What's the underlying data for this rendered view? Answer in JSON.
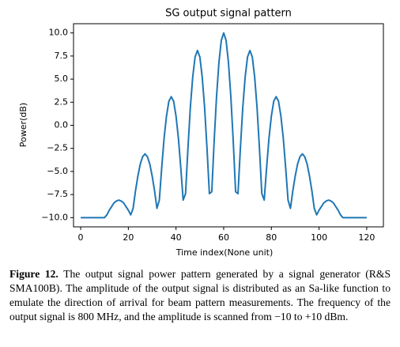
{
  "chart_data": {
    "type": "line",
    "title": "SG output signal pattern",
    "xlabel": "Time index(None unit)",
    "ylabel": "Power(dB)",
    "x": [
      0,
      1,
      2,
      3,
      4,
      5,
      6,
      7,
      8,
      9,
      10,
      11,
      12,
      13,
      14,
      15,
      16,
      17,
      18,
      19,
      20,
      21,
      22,
      23,
      24,
      25,
      26,
      27,
      28,
      29,
      30,
      31,
      32,
      33,
      34,
      35,
      36,
      37,
      38,
      39,
      40,
      41,
      42,
      43,
      44,
      45,
      46,
      47,
      48,
      49,
      50,
      51,
      52,
      53,
      54,
      55,
      56,
      57,
      58,
      59,
      60,
      61,
      62,
      63,
      64,
      65,
      66,
      67,
      68,
      69,
      70,
      71,
      72,
      73,
      74,
      75,
      76,
      77,
      78,
      79,
      80,
      81,
      82,
      83,
      84,
      85,
      86,
      87,
      88,
      89,
      90,
      91,
      92,
      93,
      94,
      95,
      96,
      97,
      98,
      99,
      100,
      101,
      102,
      103,
      104,
      105,
      106,
      107,
      108,
      109,
      110,
      111,
      112,
      113,
      114,
      115,
      116,
      117,
      118,
      119,
      120
    ],
    "series": [
      {
        "color": "#1f77b4",
        "values": [
          -10,
          -10,
          -10,
          -10,
          -10,
          -10,
          -10,
          -10,
          -10,
          -10,
          -10,
          -9.7,
          -9.2,
          -8.8,
          -8.4,
          -8.2,
          -8.1,
          -8.2,
          -8.4,
          -8.8,
          -9.2,
          -9.7,
          -9.0,
          -7.1,
          -5.5,
          -4.2,
          -3.4,
          -3.1,
          -3.4,
          -4.2,
          -5.5,
          -7.1,
          -9.0,
          -8.1,
          -4.6,
          -1.4,
          1.0,
          2.6,
          3.1,
          2.6,
          1.0,
          -1.4,
          -4.6,
          -8.1,
          -7.4,
          -2.5,
          1.9,
          5.2,
          7.4,
          8.1,
          7.4,
          5.2,
          1.9,
          -2.5,
          -7.4,
          -7.2,
          -1.7,
          3.1,
          6.8,
          9.2,
          10,
          9.2,
          6.8,
          3.1,
          -1.7,
          -7.2,
          -7.4,
          -2.5,
          1.9,
          5.2,
          7.4,
          8.1,
          7.4,
          5.2,
          1.9,
          -2.5,
          -7.4,
          -8.1,
          -4.6,
          -1.4,
          1.0,
          2.6,
          3.1,
          2.6,
          1.0,
          -1.4,
          -4.6,
          -8.1,
          -9.0,
          -7.1,
          -5.5,
          -4.2,
          -3.4,
          -3.1,
          -3.4,
          -4.2,
          -5.5,
          -7.1,
          -9.0,
          -9.7,
          -9.2,
          -8.8,
          -8.4,
          -8.2,
          -8.1,
          -8.2,
          -8.4,
          -8.8,
          -9.2,
          -9.7,
          -10,
          -10,
          -10,
          -10,
          -10,
          -10,
          -10,
          -10,
          -10,
          -10,
          -10
        ]
      }
    ],
    "xlim": [
      -3,
      127
    ],
    "ylim": [
      -11,
      11
    ],
    "xticks": [
      0,
      20,
      40,
      60,
      80,
      100,
      120
    ],
    "yticks": [
      {
        "value": -10,
        "label": "−10.0"
      },
      {
        "value": -7.5,
        "label": "−7.5"
      },
      {
        "value": -5,
        "label": "−5.0"
      },
      {
        "value": -2.5,
        "label": "−2.5"
      },
      {
        "value": 0,
        "label": "0.0"
      },
      {
        "value": 2.5,
        "label": "2.5"
      },
      {
        "value": 5,
        "label": "5.0"
      },
      {
        "value": 7.5,
        "label": "7.5"
      },
      {
        "value": 10,
        "label": "10.0"
      }
    ],
    "grid": false
  },
  "caption": {
    "label": "Figure 12.",
    "text": "The output signal power pattern generated by a signal generator (R&S SMA100B). The amplitude of the output signal is distributed as an Sa-like function to emulate the direction of arrival for beam pattern measurements. The frequency of the output signal is 800 MHz, and the amplitude is scanned from −10 to +10 dBm."
  }
}
